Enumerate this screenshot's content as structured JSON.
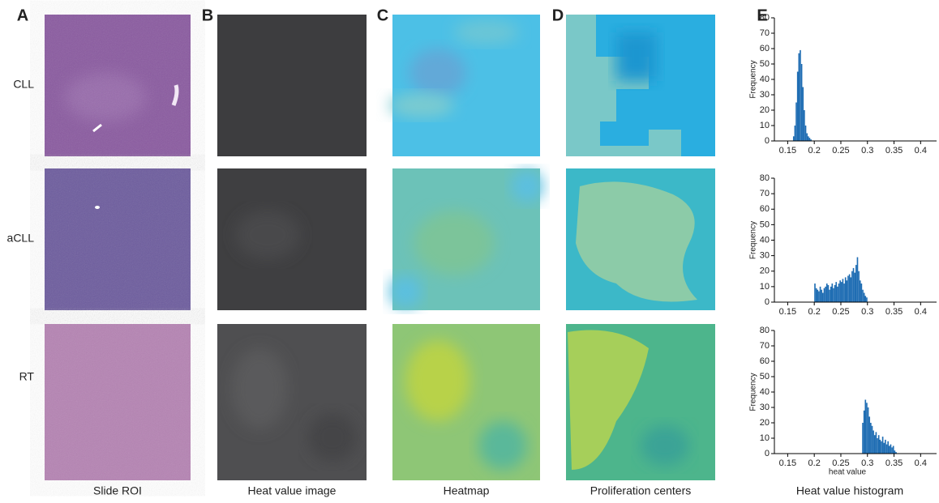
{
  "panel_letters": [
    "A",
    "B",
    "C",
    "D",
    "E"
  ],
  "row_labels": [
    "CLL",
    "aCLL",
    "RT"
  ],
  "column_titles": [
    "Slide ROI",
    "Heat value image",
    "Heatmap",
    "Proliferation centers",
    "Heat value histogram"
  ],
  "chart_data": [
    {
      "type": "histogram",
      "ylabel": "Frequency",
      "color": "#1f6db3",
      "bins": [
        0.16,
        0.1625,
        0.165,
        0.1675,
        0.17,
        0.1725,
        0.175,
        0.1775,
        0.18,
        0.1825,
        0.185,
        0.1875,
        0.19,
        0.1925,
        0.195
      ],
      "values": [
        3,
        10,
        25,
        45,
        57,
        59,
        50,
        35,
        20,
        10,
        5,
        3,
        2,
        1
      ],
      "xlim": [
        0.125,
        0.43
      ],
      "xticks": [
        0.15,
        0.2,
        0.25,
        0.3,
        0.35,
        0.4
      ],
      "ylim": [
        0,
        80
      ],
      "yticks": [
        0,
        10,
        20,
        30,
        40,
        50,
        60,
        70,
        80
      ]
    },
    {
      "type": "histogram",
      "ylabel": "Frequency",
      "color": "#1f6db3",
      "bins": [
        0.2,
        0.2025,
        0.205,
        0.2075,
        0.21,
        0.2125,
        0.215,
        0.2175,
        0.22,
        0.2225,
        0.225,
        0.2275,
        0.23,
        0.2325,
        0.235,
        0.2375,
        0.24,
        0.2425,
        0.245,
        0.2475,
        0.25,
        0.2525,
        0.255,
        0.2575,
        0.26,
        0.2625,
        0.265,
        0.2675,
        0.27,
        0.2725,
        0.275,
        0.2775,
        0.28,
        0.2825,
        0.285,
        0.2875,
        0.29,
        0.2925,
        0.295,
        0.2975,
        0.3
      ],
      "values": [
        12,
        9,
        8,
        7,
        10,
        8,
        6,
        9,
        10,
        12,
        11,
        8,
        10,
        12,
        9,
        11,
        13,
        10,
        12,
        14,
        13,
        15,
        12,
        16,
        14,
        17,
        18,
        16,
        20,
        22,
        19,
        24,
        29,
        20,
        14,
        12,
        8,
        6,
        4,
        3
      ],
      "xlim": [
        0.125,
        0.43
      ],
      "xticks": [
        0.15,
        0.2,
        0.25,
        0.3,
        0.35,
        0.4
      ],
      "ylim": [
        0,
        80
      ],
      "yticks": [
        0,
        10,
        20,
        30,
        40,
        50,
        60,
        70,
        80
      ]
    },
    {
      "type": "histogram",
      "ylabel": "Frequency",
      "xlabel": "heat value",
      "color": "#1f6db3",
      "bins": [
        0.29,
        0.2925,
        0.295,
        0.2975,
        0.3,
        0.3025,
        0.305,
        0.3075,
        0.31,
        0.3125,
        0.315,
        0.3175,
        0.32,
        0.3225,
        0.325,
        0.3275,
        0.33,
        0.3325,
        0.335,
        0.3375,
        0.34,
        0.3425,
        0.345,
        0.3475,
        0.35,
        0.3525,
        0.355
      ],
      "values": [
        20,
        28,
        35,
        33,
        30,
        24,
        20,
        18,
        15,
        12,
        14,
        10,
        12,
        9,
        8,
        11,
        7,
        9,
        6,
        8,
        5,
        6,
        4,
        5,
        2,
        1
      ],
      "xlim": [
        0.125,
        0.43
      ],
      "xticks": [
        0.15,
        0.2,
        0.25,
        0.3,
        0.35,
        0.4
      ],
      "ylim": [
        0,
        80
      ],
      "yticks": [
        0,
        10,
        20,
        30,
        40,
        50,
        60,
        70,
        80
      ]
    }
  ]
}
